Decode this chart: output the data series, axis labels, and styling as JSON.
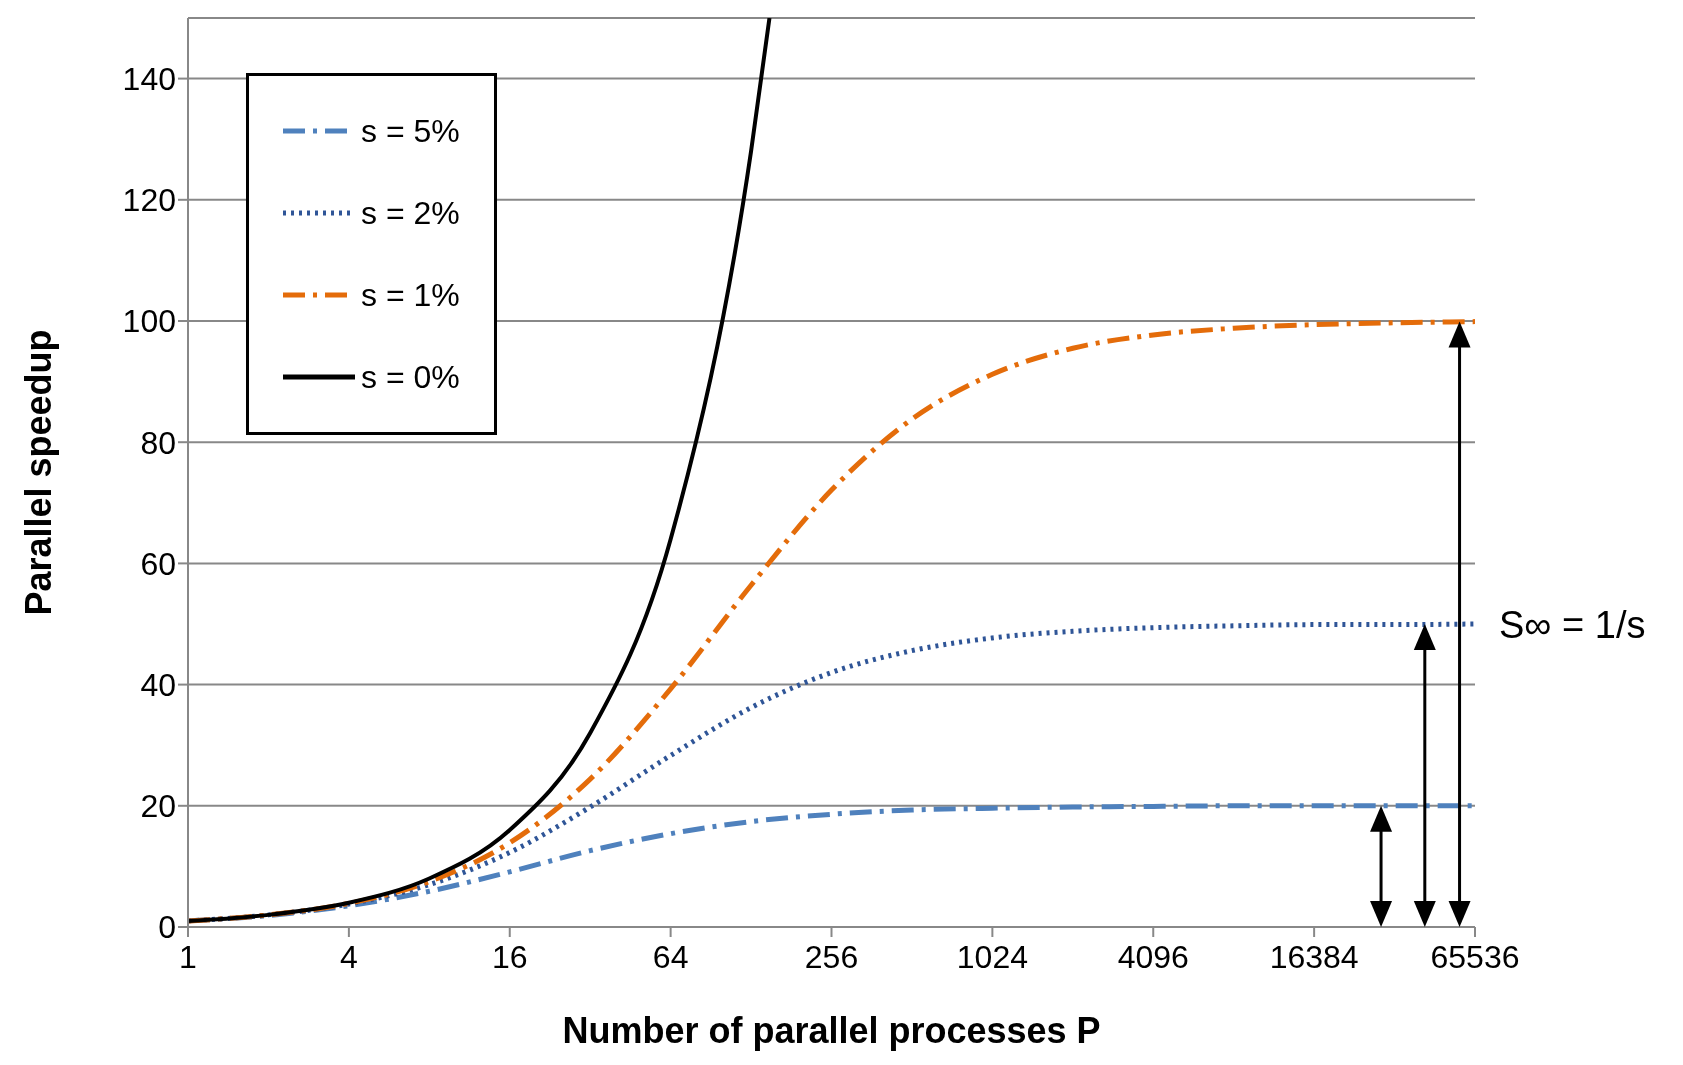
{
  "chart_data": {
    "type": "line",
    "xlabel": "Number of parallel processes P",
    "ylabel": "Parallel speedup",
    "log": "x",
    "xlim": [
      1,
      65536
    ],
    "xticks": [
      1,
      4,
      16,
      64,
      256,
      1024,
      4096,
      16384,
      65536
    ],
    "ylim": [
      0,
      150
    ],
    "yticks": [
      0,
      20,
      40,
      60,
      80,
      100,
      120,
      140
    ],
    "grid": "y",
    "legend": "top left",
    "marker": "none",
    "annotations": [
      "S∞ = 1/s"
    ],
    "series": [
      {
        "name": "s = 5%",
        "color": "#4f81bd",
        "line_style": "dashed",
        "x": [
          1,
          2,
          4,
          8,
          16,
          32,
          64,
          128,
          256,
          512,
          1024,
          2048,
          4096,
          8192,
          16384,
          32768,
          65536
        ],
        "values": [
          1,
          1.9,
          3.5,
          5.9,
          9.1,
          12.6,
          15.4,
          17.4,
          18.6,
          19.3,
          19.6,
          19.8,
          19.9,
          20,
          20,
          20,
          20
        ]
      },
      {
        "name": "s = 2%",
        "color": "#2f5597",
        "line_style": "dotted",
        "x": [
          1,
          2,
          4,
          8,
          16,
          32,
          64,
          128,
          256,
          512,
          1024,
          2048,
          4096,
          8192,
          16384,
          32768,
          65536
        ],
        "values": [
          1,
          2,
          3.8,
          7,
          12.3,
          19.8,
          28.3,
          36.2,
          42,
          45.6,
          47.7,
          48.8,
          49.4,
          49.7,
          49.9,
          49.9,
          50
        ]
      },
      {
        "name": "s = 1%",
        "color": "#e46c0a",
        "line_style": "dashed",
        "x": [
          1,
          2,
          4,
          8,
          16,
          32,
          64,
          128,
          256,
          512,
          1024,
          2048,
          4096,
          8192,
          16384,
          32768,
          65536
        ],
        "values": [
          1,
          2,
          3.9,
          7.5,
          13.9,
          24.4,
          39.3,
          56.4,
          72.1,
          83.8,
          91.2,
          95.5,
          97.7,
          98.8,
          99.4,
          99.7,
          99.9
        ]
      },
      {
        "name": "s = 0%",
        "color": "#000000",
        "line_style": "solid",
        "x": [
          1,
          2,
          4,
          8,
          16,
          32,
          64,
          128,
          150
        ],
        "values": [
          1,
          2,
          4,
          8,
          16,
          32,
          64,
          128,
          150
        ]
      }
    ]
  }
}
